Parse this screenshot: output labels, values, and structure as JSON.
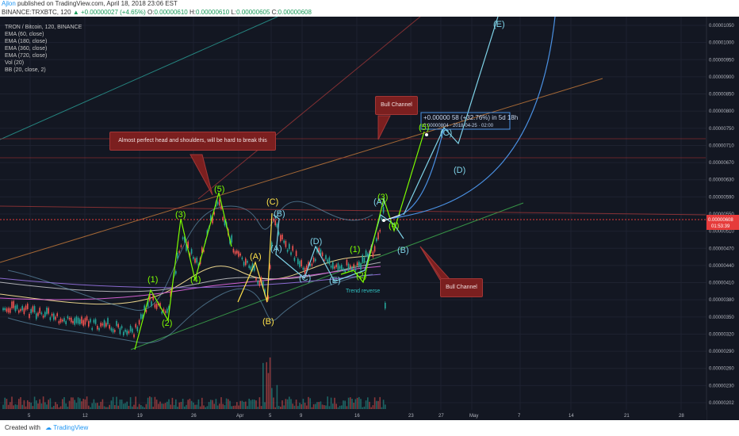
{
  "header": {
    "author": "Ajlon",
    "published": "published on TradingView.com, April 18, 2018 23:06 EST"
  },
  "symbol_line": {
    "symbol": "BINANCE:TRXBTC, 120",
    "change": "+0.00000027 (+4.65%)",
    "o_label": "O:",
    "o": "0.00000610",
    "h_label": "H:",
    "h": "0.00000610",
    "l_label": "L:",
    "l": "0.00000605",
    "c_label": "C:",
    "c": "0.00000608"
  },
  "legend": [
    "TRON / Bitcoin, 120, BINANCE",
    "EMA (60, close)",
    "EMA (180, close)",
    "EMA (360, close)",
    "EMA (720, close)",
    "Vol (20)",
    "BB (20, close, 2)"
  ],
  "annotations": {
    "hs": "Almost perfect head and shoulders, will be hard to break this",
    "bull_top": "Bull Channel",
    "bull_bottom": "Bull Channel",
    "trend": "Trend reverse",
    "measure_line1": "+0.00000 58 (+32.76%) in 5d 18h",
    "measure_line2": "0.00000804 · 2018-04-25 · 02:00"
  },
  "price_tag": {
    "value": "0.00000608",
    "countdown": "01:53:39"
  },
  "footer": {
    "created": "Created with",
    "brand": "TradingView"
  },
  "colors": {
    "background": "#131722",
    "up_candle": "#26a69a",
    "down_candle": "#ef5350",
    "green_wave": "#7cfc00",
    "yellow_wave": "#ffe24a",
    "cyan_wave": "#7fd3e8",
    "projection": "#4a90e2",
    "callout": "#7b1f1f",
    "price_tag": "#e63b3b"
  },
  "chart_data": {
    "type": "candlestick",
    "title": "TRON / Bitcoin, 120, BINANCE",
    "ylim": [
      2e-06,
      1.06e-05
    ],
    "y_ticks": [
      "0.00001050",
      "0.00001000",
      "0.00000950",
      "0.00000900",
      "0.00000850",
      "0.00000800",
      "0.00000750",
      "0.00000710",
      "0.00000670",
      "0.00000630",
      "0.00000590",
      "0.00000550",
      "0.00000510",
      "0.00000470",
      "0.00000440",
      "0.00000410",
      "0.00000380",
      "0.00000350",
      "0.00000320",
      "0.00000290",
      "0.00000260",
      "0.00000230",
      "0.00000202"
    ],
    "x_ticks": [
      "5",
      "12",
      "19",
      "26",
      "Apr",
      "5",
      "9",
      "16",
      "23",
      "27",
      "May",
      "7",
      "14",
      "21",
      "28"
    ],
    "waves": {
      "green": [
        {
          "label": "(1)",
          "x": "Mar 21",
          "y": 4.7e-06
        },
        {
          "label": "(2)",
          "x": "Mar 23",
          "y": 3.9e-06
        },
        {
          "label": "(3)",
          "x": "Mar 25",
          "y": 6.4e-06
        },
        {
          "label": "(4)",
          "x": "Mar 26",
          "y": 4.85e-06
        },
        {
          "label": "(5)",
          "x": "Mar 29",
          "y": 6.9e-06
        },
        {
          "label": "(1)",
          "x": "Apr 15",
          "y": 5.3e-06
        },
        {
          "label": "(2)",
          "x": "Apr 16",
          "y": 4.95e-06
        },
        {
          "label": "(3)",
          "x": "Apr 18",
          "y": 6.5e-06
        },
        {
          "label": "(4)",
          "x": "Apr 19",
          "y": 5.75e-06
        },
        {
          "label": "(5)",
          "x": "Apr 24",
          "y": 8.2e-06
        }
      ],
      "yellow": [
        {
          "label": "(A)",
          "x": "Apr 2",
          "y": 5.3e-06
        },
        {
          "label": "(B)",
          "x": "Apr 4",
          "y": 4.4e-06
        },
        {
          "label": "(C)",
          "x": "Apr 5",
          "y": 6.6e-06
        }
      ],
      "cyan": [
        {
          "label": "(A)",
          "x": "Apr 5",
          "y": 5.6e-06
        },
        {
          "label": "(B)",
          "x": "Apr 6",
          "y": 6.4e-06
        },
        {
          "label": "(C)",
          "x": "Apr 9",
          "y": 5e-06
        },
        {
          "label": "(D)",
          "x": "Apr 11",
          "y": 5.6e-06
        },
        {
          "label": "(E)",
          "x": "Apr 13",
          "y": 4.9e-06
        },
        {
          "label": "(A)",
          "x": "Apr 18",
          "y": 6.4e-06
        },
        {
          "label": "(B)",
          "x": "Apr 20",
          "y": 5.8e-06
        },
        {
          "label": "(C)",
          "x": "Apr 25",
          "y": 8.4e-06
        },
        {
          "label": "(D)",
          "x": "Apr 26",
          "y": 7.8e-06
        },
        {
          "label": "(E)",
          "x": "May 1",
          "y": 1.06e-05
        }
      ]
    },
    "last_price": 6.08e-06
  }
}
